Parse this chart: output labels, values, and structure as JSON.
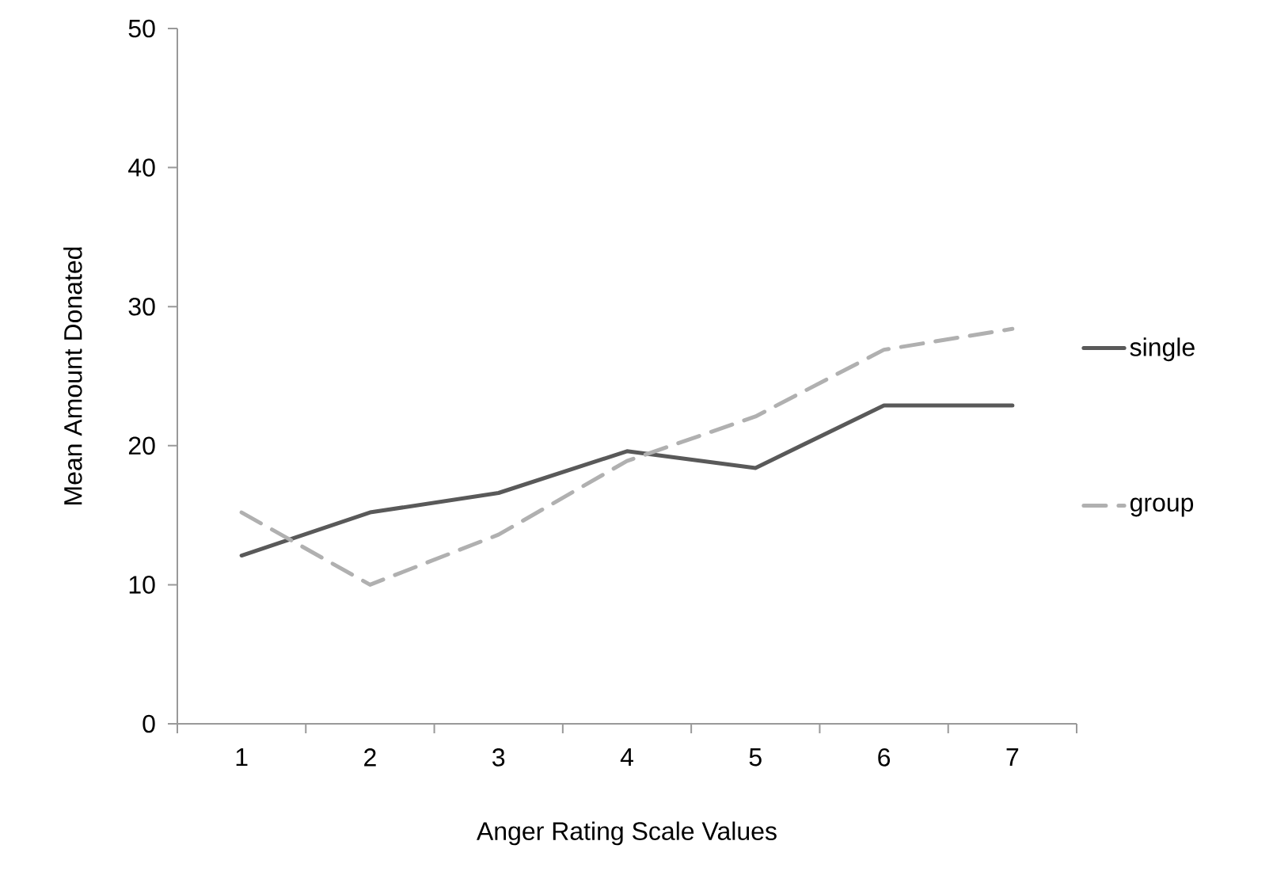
{
  "chart_data": {
    "type": "line",
    "xlabel": "Anger Rating Scale Values",
    "ylabel": "Mean Amount Donated",
    "categories": [
      "1",
      "2",
      "3",
      "4",
      "5",
      "6",
      "7"
    ],
    "series": [
      {
        "name": "single",
        "color": "#595959",
        "line_style": "solid",
        "values": [
          12.1,
          15.2,
          16.6,
          19.6,
          18.4,
          22.9,
          22.9
        ]
      },
      {
        "name": "group",
        "color": "#b0b0b0",
        "line_style": "dashed",
        "values": [
          15.2,
          10.0,
          13.6,
          18.9,
          22.1,
          26.9,
          28.4
        ]
      }
    ],
    "ylim": [
      0,
      50
    ],
    "yticks": [
      0,
      10,
      20,
      30,
      40,
      50
    ],
    "grid": false,
    "legend": "right",
    "marker": "none"
  }
}
